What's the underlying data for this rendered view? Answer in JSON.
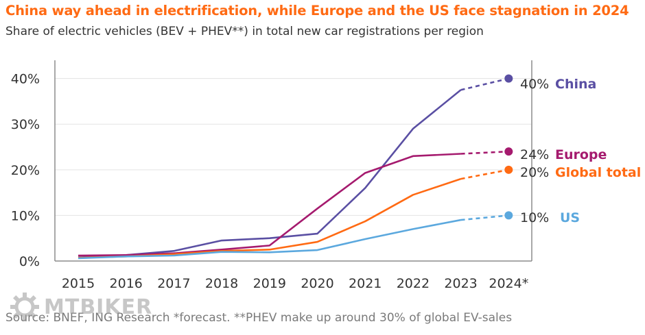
{
  "title": "China way ahead in electrification, while Europe and the US face stagnation in 2024",
  "subtitle": "Share of electric vehicles (BEV + PHEV**) in total new car registrations per region",
  "source": "Source: BNEF, ING Research *forecast. **PHEV make up around 30% of global EV-sales",
  "watermark": {
    "text": "MTBIKER",
    "icon": "gear-icon"
  },
  "chart_data": {
    "type": "line",
    "x": [
      "2015",
      "2016",
      "2017",
      "2018",
      "2019",
      "2020",
      "2021",
      "2022",
      "2023",
      "2024*"
    ],
    "forecast_from_index": 8,
    "ylim": [
      0,
      44
    ],
    "yticks": [
      0,
      10,
      20,
      30,
      40
    ],
    "ytick_labels": [
      "0%",
      "10%",
      "20%",
      "30%",
      "40%"
    ],
    "grid": true,
    "series": [
      {
        "name": "China",
        "color": "#5a4fa3",
        "values": [
          0.8,
          1.3,
          2.2,
          4.5,
          5.0,
          6.0,
          16.0,
          29.0,
          37.5,
          40
        ],
        "end_label": "40%"
      },
      {
        "name": "Europe",
        "color": "#a51a6e",
        "values": [
          1.2,
          1.3,
          1.7,
          2.5,
          3.4,
          11.5,
          19.3,
          23.0,
          23.5,
          24
        ],
        "end_label": "24%"
      },
      {
        "name": "Global total",
        "color": "#ff6a13",
        "values": [
          0.7,
          1.0,
          1.5,
          2.2,
          2.5,
          4.2,
          8.7,
          14.5,
          18.0,
          20
        ],
        "end_label": "20%"
      },
      {
        "name": "US",
        "color": "#5ba8de",
        "values": [
          0.6,
          1.0,
          1.2,
          2.0,
          1.9,
          2.4,
          4.8,
          7.0,
          9.0,
          10
        ],
        "end_label": "10%"
      }
    ]
  }
}
